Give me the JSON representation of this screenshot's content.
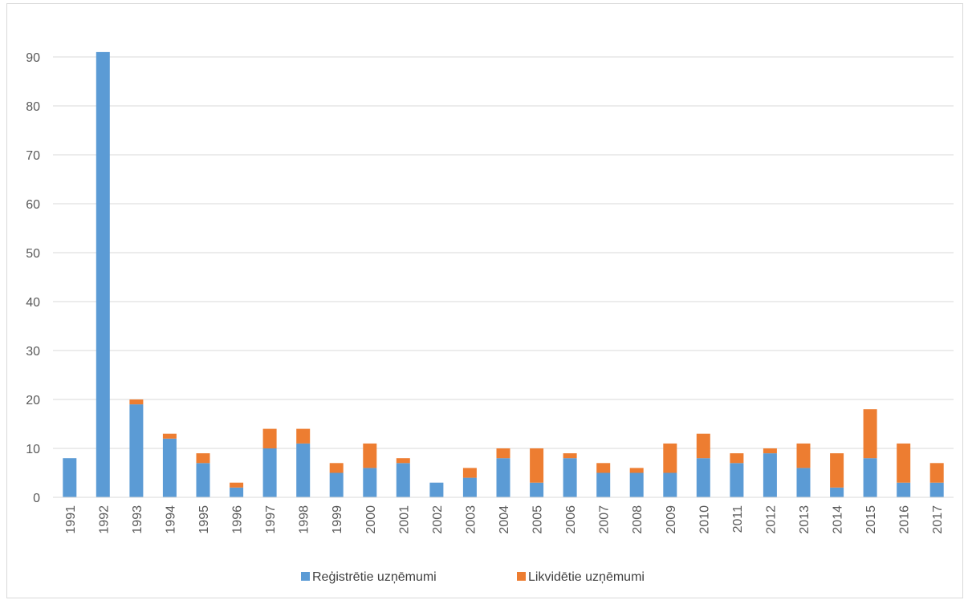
{
  "chart_data": {
    "type": "bar",
    "stacked": true,
    "title": "",
    "xlabel": "",
    "ylabel": "",
    "categories": [
      "1991",
      "1992",
      "1993",
      "1994",
      "1995",
      "1996",
      "1997",
      "1998",
      "1999",
      "2000",
      "2001",
      "2002",
      "2003",
      "2004",
      "2005",
      "2006",
      "2007",
      "2008",
      "2009",
      "2010",
      "2011",
      "2012",
      "2013",
      "2014",
      "2015",
      "2016",
      "2017"
    ],
    "series": [
      {
        "name": "Reģistrētie uzņēmumi",
        "color": "#5b9bd5",
        "values": [
          8,
          91,
          19,
          12,
          7,
          2,
          10,
          11,
          5,
          6,
          7,
          3,
          4,
          8,
          3,
          8,
          5,
          5,
          5,
          8,
          7,
          9,
          6,
          2,
          8,
          3,
          3
        ]
      },
      {
        "name": "Likvidētie uzņēmumi",
        "color": "#ed7d31",
        "values": [
          0,
          0,
          1,
          1,
          2,
          1,
          4,
          3,
          2,
          5,
          1,
          0,
          2,
          2,
          7,
          1,
          2,
          1,
          6,
          5,
          2,
          1,
          5,
          7,
          10,
          8,
          4
        ]
      }
    ],
    "ylim": [
      0,
      100
    ],
    "yticks": [
      0,
      10,
      20,
      30,
      40,
      50,
      60,
      70,
      80,
      90
    ],
    "grid": true,
    "legend_position": "bottom",
    "gridline_color": "#d9d9d9"
  }
}
